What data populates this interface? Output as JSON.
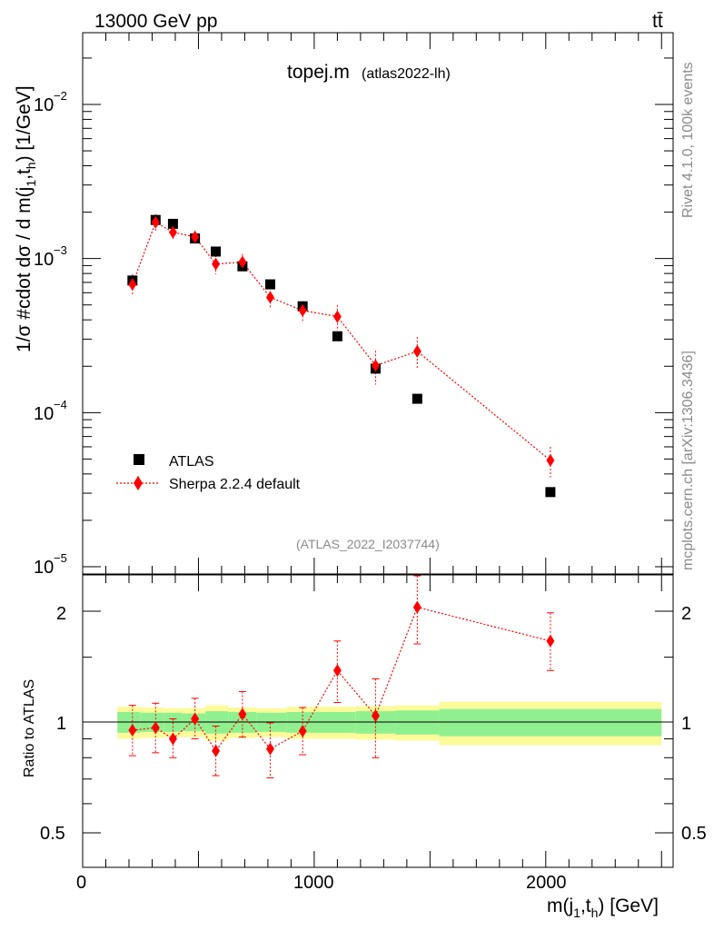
{
  "header": {
    "left": "13000 GeV pp",
    "right": "tt̄"
  },
  "side_text": {
    "rivet": "Rivet 4.1.0,  100k events",
    "mcplots": "mcplots.cern.ch [arXiv:1306.3436]"
  },
  "chart_data": [
    {
      "type": "scatter",
      "title": "topej.m",
      "subtitle": "(atlas2022-lh)",
      "analysis_id": "(ATLAS_2022_I2037744)",
      "ylabel": "1/σ #cdot dσ / d m(j",
      "ylabel_sub1": "1",
      "ylabel_mid": ",t",
      "ylabel_sub2": "h",
      "ylabel_tail": ") [1/GeV]",
      "yscale": "log",
      "ylim": [
        8e-06,
        0.03
      ],
      "xlim": [
        0,
        2550
      ],
      "ytick_labels": [
        {
          "value": 0.01,
          "base": "10",
          "exp": "−2"
        },
        {
          "value": 0.001,
          "base": "10",
          "exp": "−3"
        },
        {
          "value": 0.0001,
          "base": "10",
          "exp": "−4"
        },
        {
          "value": 1e-05,
          "base": "10",
          "exp": "−5"
        }
      ],
      "legend": {
        "placement": "lower-left",
        "entries": [
          "ATLAS",
          "Sherpa 2.2.4 default"
        ]
      },
      "series": [
        {
          "name": "ATLAS",
          "marker": "square",
          "color": "#000000",
          "x": [
            215,
            315,
            390,
            485,
            575,
            690,
            810,
            950,
            1100,
            1265,
            1445,
            2020
          ],
          "y": [
            0.00072,
            0.00178,
            0.00168,
            0.00135,
            0.00111,
            0.00089,
            0.00068,
            0.00049,
            0.000313,
            0.000193,
            0.000123,
            3.05e-05
          ]
        },
        {
          "name": "Sherpa 2.2.4 default",
          "marker": "diamond",
          "color": "#ff0000",
          "line": "dotted",
          "x": [
            215,
            315,
            390,
            485,
            575,
            690,
            810,
            950,
            1100,
            1265,
            1445,
            2020
          ],
          "y": [
            0.00068,
            0.00172,
            0.00148,
            0.00138,
            0.00092,
            0.00095,
            0.00056,
            0.00046,
            0.00042,
            0.000202,
            0.00025,
            4.9e-05
          ],
          "yerr_low": [
            0.00011,
            0.00022,
            0.00014,
            0.00013,
            0.00013,
            0.00012,
            9e-05,
            7e-05,
            8e-05,
            5e-05,
            6e-05,
            1.1e-05
          ],
          "yerr_high": [
            0.00011,
            0.00022,
            0.00014,
            0.00013,
            0.00013,
            0.00012,
            9e-05,
            7e-05,
            8e-05,
            5e-05,
            6e-05,
            1.1e-05
          ]
        }
      ]
    },
    {
      "type": "scatter",
      "ylabel": "Ratio to ATLAS",
      "xlabel": "m(j",
      "xlabel_sub1": "1",
      "xlabel_mid": ",t",
      "xlabel_sub2": "h",
      "xlabel_tail": ") [GeV]",
      "yscale": "log",
      "ylim": [
        0.38,
        2.6
      ],
      "xlim": [
        0,
        2550
      ],
      "xtick_labels": [
        "0",
        "1000",
        "2000"
      ],
      "ytick_labels": [
        "0.5",
        "1",
        "2"
      ],
      "bands": {
        "edges": [
          150,
          250,
          350,
          430,
          530,
          630,
          750,
          880,
          1020,
          1180,
          1350,
          1540,
          2500
        ],
        "green_low": [
          0.935,
          0.94,
          0.94,
          0.945,
          0.93,
          0.935,
          0.94,
          0.935,
          0.935,
          0.93,
          0.925,
          0.915
        ],
        "green_high": [
          1.065,
          1.06,
          1.06,
          1.055,
          1.07,
          1.065,
          1.06,
          1.065,
          1.065,
          1.07,
          1.075,
          1.085
        ],
        "yellow_low": [
          0.9,
          0.905,
          0.91,
          0.91,
          0.89,
          0.905,
          0.91,
          0.9,
          0.9,
          0.895,
          0.89,
          0.865
        ],
        "yellow_high": [
          1.1,
          1.095,
          1.09,
          1.09,
          1.11,
          1.095,
          1.09,
          1.1,
          1.1,
          1.105,
          1.11,
          1.135
        ],
        "colors": {
          "green": "#90f090",
          "yellow": "#fbfb9a"
        }
      },
      "series": [
        {
          "name": "Sherpa 2.2.4 default / ATLAS",
          "marker": "diamond",
          "color": "#ff0000",
          "line": "dotted",
          "x": [
            215,
            315,
            390,
            485,
            575,
            690,
            810,
            950,
            1100,
            1265,
            1445,
            2020
          ],
          "y": [
            0.95,
            0.965,
            0.9,
            1.02,
            0.835,
            1.05,
            0.845,
            0.945,
            1.38,
            1.04,
            2.05,
            1.66
          ],
          "yerr_low": [
            0.14,
            0.14,
            0.1,
            0.12,
            0.12,
            0.14,
            0.14,
            0.13,
            0.25,
            0.24,
            0.42,
            0.28
          ],
          "yerr_high": [
            0.16,
            0.16,
            0.12,
            0.14,
            0.14,
            0.16,
            0.15,
            0.15,
            0.28,
            0.27,
            0.5,
            0.32
          ]
        }
      ]
    }
  ]
}
